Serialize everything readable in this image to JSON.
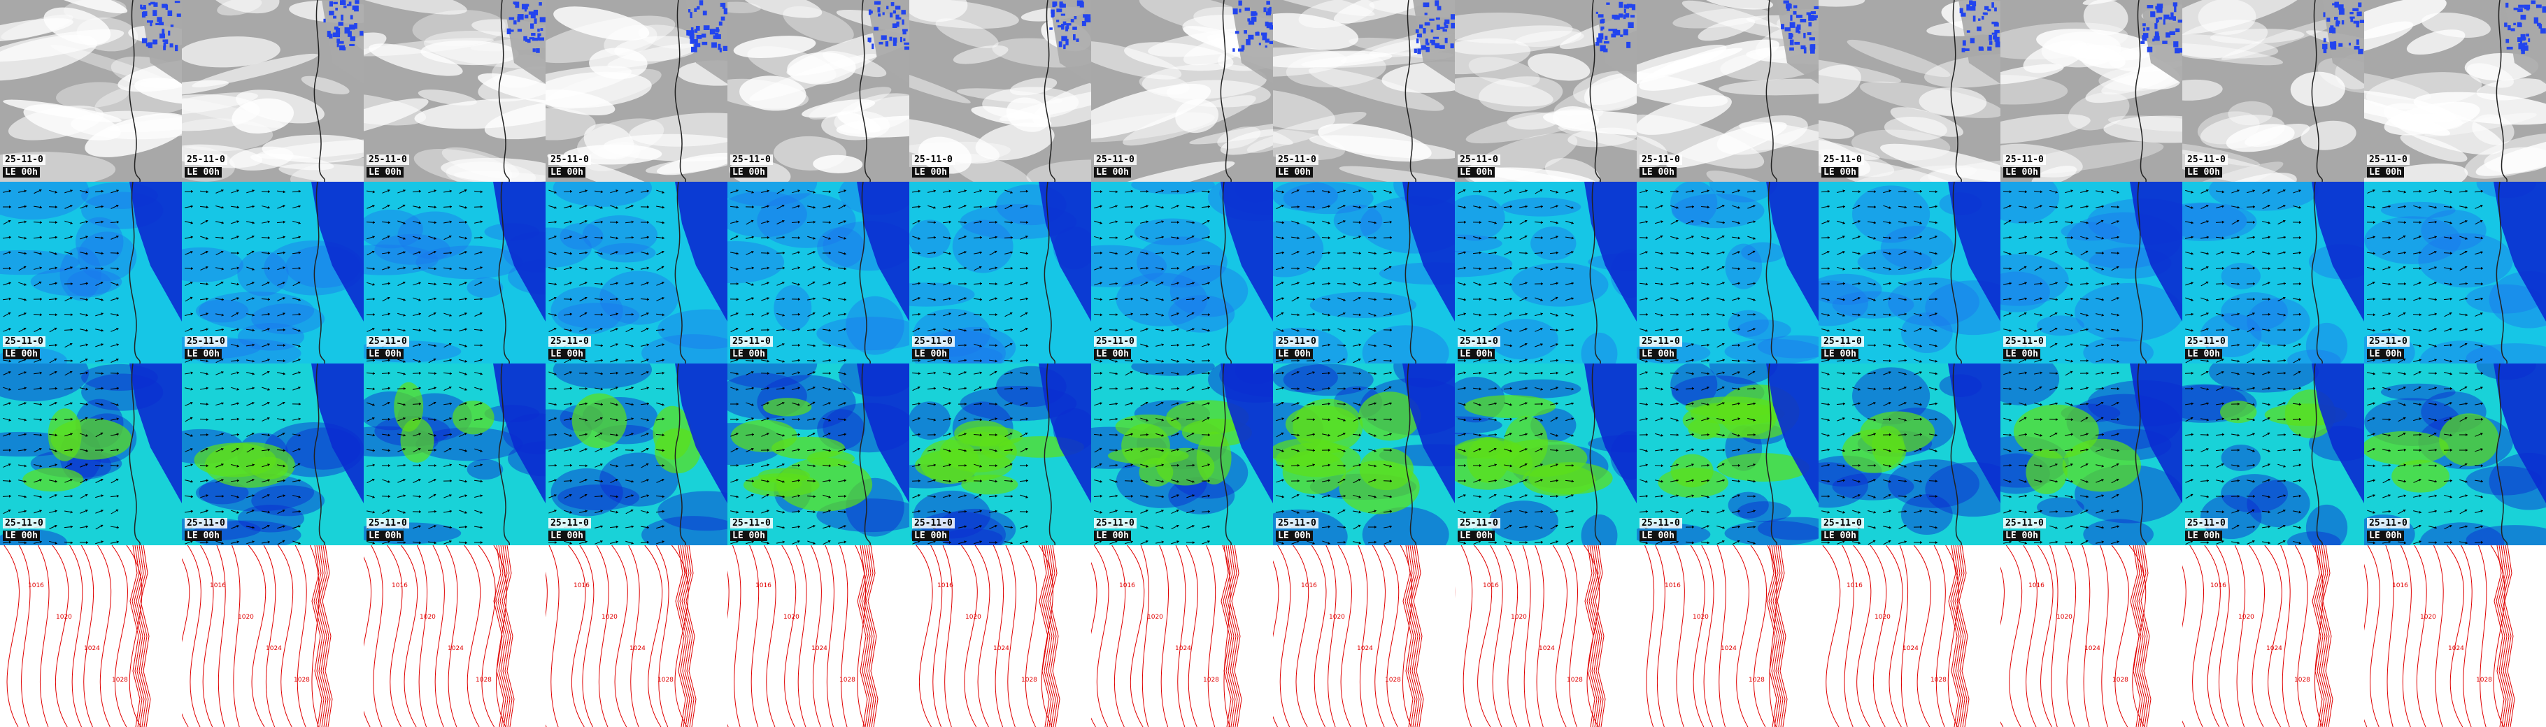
{
  "rows": [
    {
      "name": "cloud",
      "colors": {
        "bg": "#a8a8a8",
        "hi": "#ffffff",
        "land": "#2244ee",
        "coast": "#222222"
      }
    },
    {
      "name": "wind-low",
      "colors": {
        "bg": "#16c6e6",
        "deep": "#0a2bd0",
        "mid": "#1a77ee",
        "arrow": "#000000",
        "coast": "#222222"
      }
    },
    {
      "name": "wind-high",
      "colors": {
        "bg": "#19d2d8",
        "strong": "#5de01a",
        "deep": "#0a2bd0",
        "arrow": "#000000",
        "coast": "#222222"
      }
    },
    {
      "name": "pressure",
      "colors": {
        "bg": "#ffffff",
        "line": "#e00000"
      }
    }
  ],
  "frames": [
    {
      "date": "25-11-0",
      "time": "LE 00h"
    },
    {
      "date": "25-11-0",
      "time": "LE 00h"
    },
    {
      "date": "25-11-0",
      "time": "LE 00h"
    },
    {
      "date": "25-11-0",
      "time": "LE 00h"
    },
    {
      "date": "25-11-0",
      "time": "LE 00h"
    },
    {
      "date": "25-11-0",
      "time": "LE 00h"
    },
    {
      "date": "25-11-0",
      "time": "LE 00h"
    },
    {
      "date": "25-11-0",
      "time": "LE 00h"
    },
    {
      "date": "25-11-0",
      "time": "LE 00h"
    },
    {
      "date": "25-11-0",
      "time": "LE 00h"
    },
    {
      "date": "25-11-0",
      "time": "LE 00h"
    },
    {
      "date": "25-11-0",
      "time": "LE 00h"
    },
    {
      "date": "25-11-0",
      "time": "LE 00h"
    },
    {
      "date": "25-11-0",
      "time": "LE 00h"
    }
  ],
  "isobar_labels": [
    "1016",
    "1020",
    "1024",
    "1028"
  ]
}
